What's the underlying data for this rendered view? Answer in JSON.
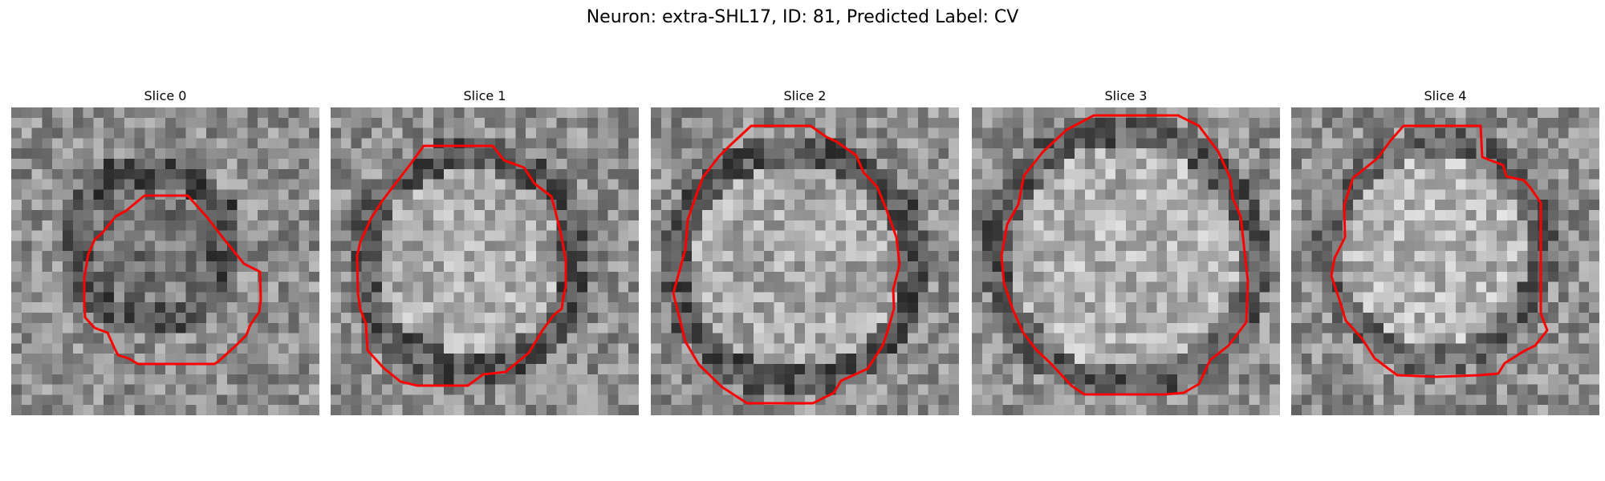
{
  "figure": {
    "title": "Neuron: extra-SHL17, ID: 81, Predicted Label: CV",
    "contour_color": "#ff0000",
    "colormap": "grayscale"
  },
  "slices": [
    {
      "title": "Slice 0",
      "content": "noisy grayscale patch, darker ring around a mid-gray cell body"
    },
    {
      "title": "Slice 1",
      "content": "noisy grayscale patch, bright cell body with dark rim"
    },
    {
      "title": "Slice 2",
      "content": "noisy grayscale patch, bright cell body with dark rim"
    },
    {
      "title": "Slice 3",
      "content": "noisy grayscale patch, large bright cell body"
    },
    {
      "title": "Slice 4",
      "content": "noisy grayscale patch, bright cell body"
    }
  ]
}
